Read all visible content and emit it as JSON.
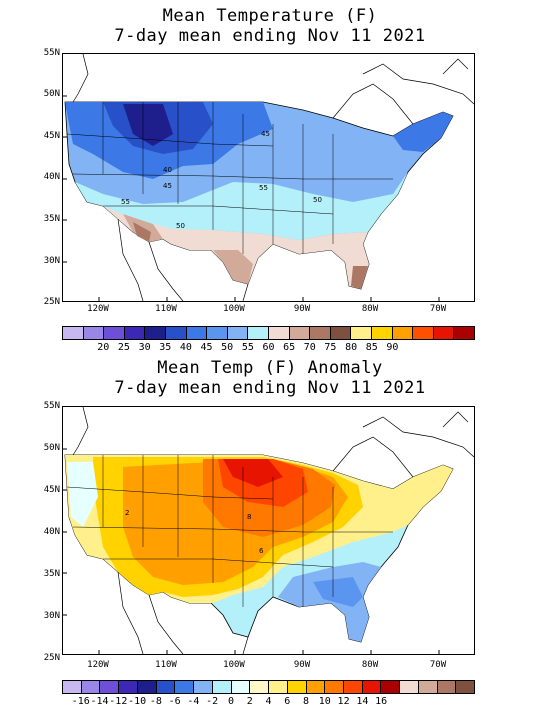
{
  "panels": [
    {
      "title_line1": "Mean Temperature (F)",
      "title_line2": "7-day mean ending Nov 11 2021",
      "lat_labels": [
        "55N",
        "50N",
        "45N",
        "40N",
        "35N",
        "30N",
        "25N"
      ],
      "lon_labels": [
        "120W",
        "110W",
        "100W",
        "90W",
        "80W",
        "70W"
      ],
      "contour_labels": [
        "45",
        "40",
        "45",
        "55",
        "50",
        "55",
        "50"
      ],
      "colorbar_colors": [
        "#c8b8f0",
        "#9a86e6",
        "#6e50d8",
        "#3c28b4",
        "#1e1e8c",
        "#2850c8",
        "#3c78e6",
        "#5a96f0",
        "#82b4f5",
        "#b4f0fa",
        "#f0dcd2",
        "#d2aa9a",
        "#aa7864",
        "#7d5040",
        "#fff08c",
        "#ffd200",
        "#ffa000",
        "#ff5000",
        "#e61400",
        "#aa0000"
      ],
      "colorbar_labels": [
        "20",
        "25",
        "30",
        "35",
        "40",
        "45",
        "50",
        "55",
        "60",
        "65",
        "70",
        "75",
        "80",
        "85",
        "90"
      ]
    },
    {
      "title_line1": "Mean Temp (F) Anomaly",
      "title_line2": "7-day mean ending Nov 11 2021",
      "lat_labels": [
        "55N",
        "50N",
        "45N",
        "40N",
        "35N",
        "30N",
        "25N"
      ],
      "lon_labels": [
        "120W",
        "110W",
        "100W",
        "90W",
        "80W",
        "70W"
      ],
      "contour_labels": [
        "2",
        "8",
        "6"
      ],
      "colorbar_colors": [
        "#c8b8f0",
        "#9a86e6",
        "#6e50d8",
        "#3c28b4",
        "#1e1e8c",
        "#2850c8",
        "#3c78e6",
        "#82b4f5",
        "#b4f0fa",
        "#e6ffff",
        "#fff8c8",
        "#fff08c",
        "#ffd200",
        "#ffa000",
        "#ff7800",
        "#ff4600",
        "#e61400",
        "#aa0000",
        "#f0dcd2",
        "#d2aa9a",
        "#aa7864",
        "#7d5040"
      ],
      "colorbar_labels": [
        "-16",
        "-14",
        "-12",
        "-10",
        "-8",
        "-6",
        "-4",
        "-2",
        "0",
        "2",
        "4",
        "6",
        "8",
        "10",
        "12",
        "14",
        "16"
      ]
    }
  ]
}
